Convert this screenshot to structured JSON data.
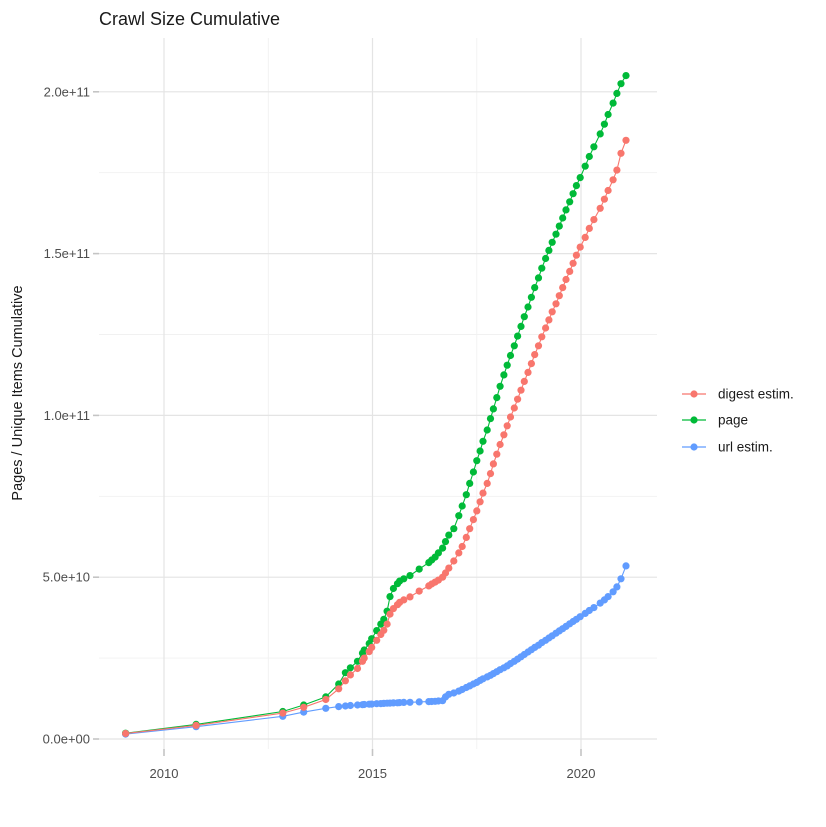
{
  "title": "Crawl Size Cumulative",
  "y_axis": {
    "label": "Pages / Unique Items Cumulative",
    "tick_labels": [
      "0.0e+00",
      "5.0e+10",
      "1.0e+11",
      "1.5e+11",
      "2.0e+11"
    ],
    "tick_values_billions": [
      0,
      50,
      100,
      150,
      200
    ],
    "minor_values_billions": [
      25,
      75,
      125,
      175
    ]
  },
  "x_axis": {
    "tick_labels": [
      "2010",
      "2015",
      "2020"
    ],
    "tick_values": [
      2010,
      2015,
      2020
    ],
    "minor_values": [
      2012.5,
      2017.5
    ]
  },
  "chart_data": {
    "type": "scatter",
    "title": "Crawl Size Cumulative",
    "xlabel": "",
    "ylabel": "Pages / Unique Items Cumulative",
    "xlim": [
      2008.45,
      2021.85
    ],
    "ylim_billions": [
      0,
      215
    ],
    "values_unit": "1e9 (billions)",
    "grid": true,
    "legend_position": "right",
    "x": [
      2009.08,
      2010.77,
      2012.85,
      2013.35,
      2013.88,
      2014.19,
      2014.35,
      2014.47,
      2014.64,
      2014.76,
      2014.8,
      2014.92,
      2014.98,
      2015.1,
      2015.2,
      2015.27,
      2015.35,
      2015.42,
      2015.5,
      2015.6,
      2015.65,
      2015.75,
      2015.9,
      2016.12,
      2016.35,
      2016.42,
      2016.5,
      2016.58,
      2016.68,
      2016.75,
      2016.83,
      2016.95,
      2017.07,
      2017.15,
      2017.25,
      2017.33,
      2017.42,
      2017.5,
      2017.58,
      2017.65,
      2017.75,
      2017.83,
      2017.9,
      2017.98,
      2018.06,
      2018.15,
      2018.23,
      2018.31,
      2018.4,
      2018.48,
      2018.56,
      2018.64,
      2018.73,
      2018.81,
      2018.89,
      2018.98,
      2019.06,
      2019.15,
      2019.23,
      2019.31,
      2019.4,
      2019.48,
      2019.56,
      2019.64,
      2019.73,
      2019.81,
      2019.89,
      2019.98,
      2020.1,
      2020.2,
      2020.31,
      2020.46,
      2020.56,
      2020.65,
      2020.77,
      2020.86,
      2020.96,
      2021.08
    ],
    "series": [
      {
        "name": "digest estim.",
        "color": "#F8766D",
        "values": [
          1.7,
          4.2,
          8.0,
          9.8,
          12.2,
          15.5,
          18.0,
          19.8,
          21.8,
          24.0,
          25.0,
          27.0,
          28.3,
          30.5,
          32.3,
          33.6,
          35.5,
          38.6,
          40.3,
          41.5,
          42.2,
          43.0,
          43.9,
          45.7,
          47.3,
          47.9,
          48.5,
          49.1,
          50.0,
          51.3,
          52.8,
          55.0,
          57.5,
          59.5,
          62.3,
          65.0,
          67.8,
          70.5,
          73.3,
          76.0,
          79.0,
          82.0,
          85.0,
          88.0,
          91.0,
          94.0,
          96.8,
          99.5,
          102.3,
          105.0,
          107.8,
          110.5,
          113.3,
          116.0,
          118.8,
          121.5,
          124.3,
          127.0,
          129.5,
          132.0,
          134.5,
          137.0,
          139.5,
          142.0,
          144.5,
          147.0,
          149.5,
          152.0,
          155.0,
          157.8,
          160.5,
          164.0,
          166.8,
          169.5,
          172.8,
          175.8,
          181.0,
          185.0
        ]
      },
      {
        "name": "page",
        "color": "#00BA38",
        "values": [
          1.8,
          4.5,
          8.5,
          10.5,
          13.0,
          17.0,
          20.5,
          22.0,
          24.0,
          26.5,
          27.5,
          29.5,
          31.0,
          33.5,
          35.5,
          37.0,
          39.5,
          44.0,
          46.5,
          48.0,
          48.8,
          49.5,
          50.5,
          52.5,
          54.5,
          55.3,
          56.2,
          57.5,
          59.0,
          61.0,
          63.0,
          65.0,
          69.0,
          72.0,
          75.5,
          79.0,
          82.5,
          86.0,
          89.0,
          92.0,
          95.5,
          99.0,
          102.0,
          105.5,
          109.0,
          112.5,
          115.5,
          118.5,
          121.5,
          124.5,
          127.5,
          130.5,
          133.5,
          136.5,
          139.5,
          142.5,
          145.5,
          148.5,
          151.0,
          153.5,
          156.0,
          158.5,
          161.0,
          163.5,
          166.0,
          168.5,
          171.0,
          173.5,
          177.0,
          180.0,
          183.0,
          187.0,
          190.0,
          193.0,
          196.5,
          199.5,
          202.5,
          205.0
        ]
      },
      {
        "name": "url estim.",
        "color": "#619CFF",
        "values": [
          1.5,
          3.8,
          7.0,
          8.3,
          9.5,
          10.0,
          10.2,
          10.35,
          10.5,
          10.6,
          10.65,
          10.75,
          10.8,
          10.9,
          10.95,
          11.0,
          11.05,
          11.1,
          11.15,
          11.2,
          11.25,
          11.3,
          11.35,
          11.45,
          11.55,
          11.6,
          11.65,
          11.75,
          11.85,
          13.0,
          13.8,
          14.2,
          14.8,
          15.3,
          15.9,
          16.4,
          17.0,
          17.5,
          18.1,
          18.6,
          19.2,
          19.7,
          20.2,
          20.8,
          21.4,
          22.0,
          22.6,
          23.3,
          24.0,
          24.7,
          25.4,
          26.1,
          26.9,
          27.6,
          28.3,
          29.0,
          29.8,
          30.5,
          31.2,
          31.9,
          32.7,
          33.4,
          34.1,
          34.8,
          35.6,
          36.3,
          37.0,
          37.8,
          38.8,
          39.7,
          40.6,
          42.0,
          43.0,
          44.0,
          45.5,
          47.0,
          49.5,
          53.5
        ]
      }
    ]
  }
}
